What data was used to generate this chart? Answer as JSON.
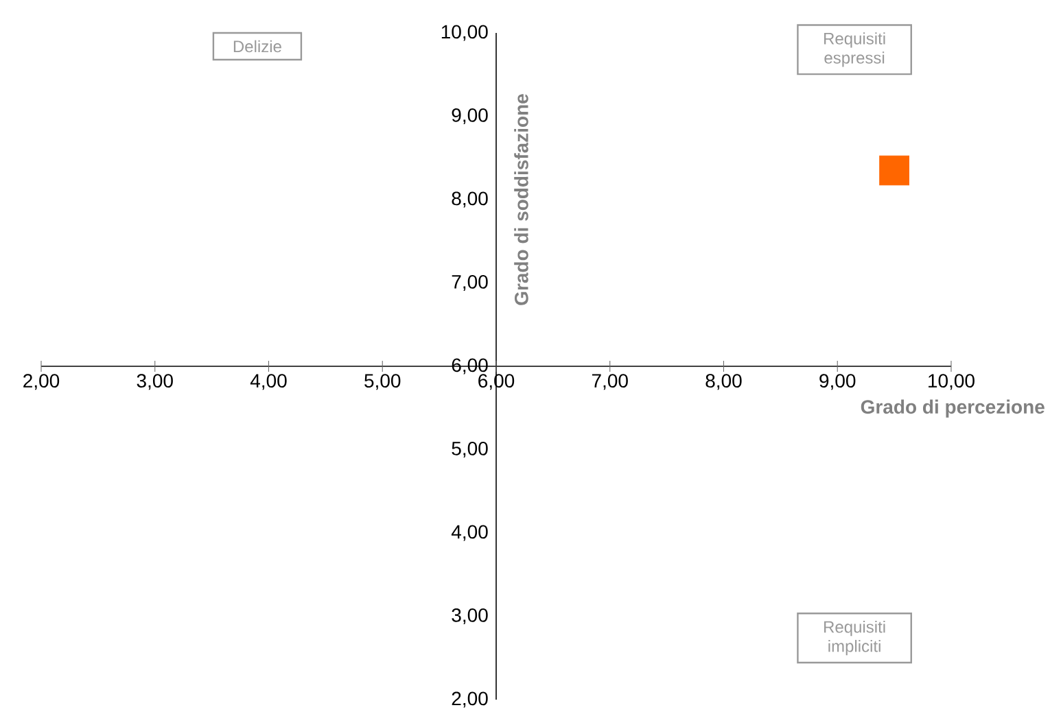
{
  "chart_data": {
    "type": "scatter",
    "xlabel": "Grado di percezione",
    "ylabel": "Grado di soddisfazione",
    "annotations": [
      "Delizie",
      "Requisiti espressi",
      "Requisiti impliciti"
    ],
    "series": [
      {
        "color": "#ff6600",
        "x": [
          9.5
        ],
        "values": [
          8.35
        ]
      }
    ],
    "marker": "square",
    "xlim": [
      2,
      10
    ],
    "ylim": [
      2,
      10
    ],
    "xticks": [
      {
        "value": 2,
        "label": "2,00"
      },
      {
        "value": 3,
        "label": "3,00"
      },
      {
        "value": 4,
        "label": "4,00"
      },
      {
        "value": 5,
        "label": "5,00"
      },
      {
        "value": 6,
        "label": "6,00"
      },
      {
        "value": 7,
        "label": "7,00"
      },
      {
        "value": 8,
        "label": "8,00"
      },
      {
        "value": 9,
        "label": "9,00"
      },
      {
        "value": 10,
        "label": "10,00"
      }
    ],
    "yticks": [
      {
        "value": 2,
        "label": "2,00"
      },
      {
        "value": 3,
        "label": "3,00"
      },
      {
        "value": 4,
        "label": "4,00"
      },
      {
        "value": 5,
        "label": "5,00"
      },
      {
        "value": 6,
        "label": "6,00"
      },
      {
        "value": 7,
        "label": "7,00"
      },
      {
        "value": 8,
        "label": "8,00"
      },
      {
        "value": 9,
        "label": "9,00"
      },
      {
        "value": 10,
        "label": "10,00"
      }
    ]
  }
}
